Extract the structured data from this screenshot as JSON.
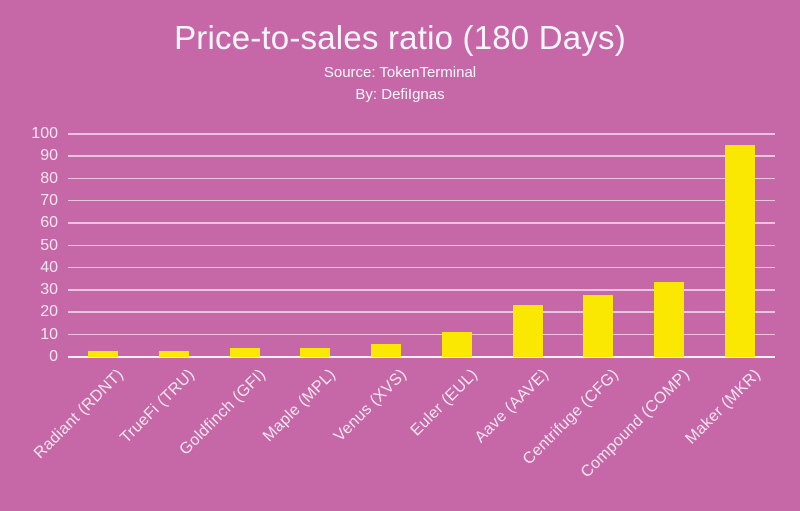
{
  "chart_data": {
    "type": "bar",
    "title": "Price-to-sales ratio (180 Days)",
    "subtitle": "Source: TokenTerminal",
    "byline": "By: DefiIgnas",
    "categories": [
      "Radiant (RDNT)",
      "TrueFi (TRU)",
      "Goldfinch (GFI)",
      "Maple (MPL)",
      "Venus (XVS)",
      "Euler (EUL)",
      "Aave (AAVE)",
      "Centrifuge (CFG)",
      "Compound (COMP)",
      "Maker (MKR)"
    ],
    "values": [
      2.7,
      2.6,
      4.0,
      4.2,
      6.0,
      11.0,
      23.5,
      27.8,
      33.8,
      95.0
    ],
    "xlabel": "",
    "ylabel": "",
    "ylim": [
      0,
      100
    ],
    "yticks": [
      0,
      10,
      20,
      30,
      40,
      50,
      60,
      70,
      80,
      90,
      100
    ],
    "grid": true,
    "legend": false
  },
  "colors": {
    "background": "#C668A7",
    "bar": "#FAE803",
    "gridline": "rgba(255,255,255,0.62)",
    "axis_line": "rgba(255,255,255,0.9)",
    "title_text": "#FCF5FB",
    "label_text": "#F4E5EF"
  }
}
